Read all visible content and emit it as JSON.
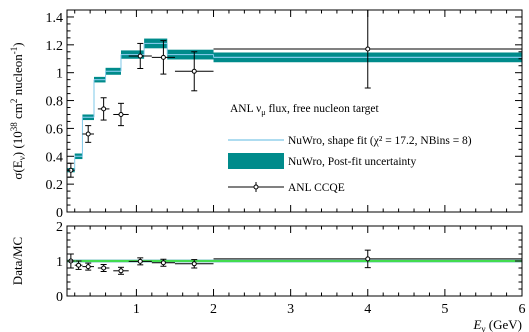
{
  "chart_data": [
    {
      "type": "line",
      "panel": "top",
      "ylabel": "σ(E_ν) (10^38 cm² nucleon⁻¹)",
      "ylabel_parts": {
        "sym": "σ(E",
        "sub": "ν",
        "mid": ") (10",
        "exp1": "38",
        "unit": " cm",
        "exp2": "2",
        "unit2": " nucleon",
        "exp3": "-1",
        "close": ")"
      },
      "xlim": [
        0.1,
        6
      ],
      "ylim": [
        0,
        1.45
      ],
      "yticks": [
        "0",
        "0.2",
        "0.4",
        "0.6",
        "0.8",
        "1",
        "1.2",
        "1.4"
      ],
      "ytick_values": [
        0,
        0.2,
        0.4,
        0.6,
        0.8,
        1.0,
        1.2,
        1.4
      ],
      "legend": {
        "title_parts": {
          "pre": "ANL ν",
          "sub": "μ",
          "post": " flux, free nucleon target"
        },
        "line_label": "NuWro, shape fit (χ² = 17.2, NBins = 8)",
        "band_label": "NuWro, Post-fit uncertainty",
        "data_label": "ANL CCQE"
      },
      "colors": {
        "line": "#7ec8e8",
        "band": "#008b8b",
        "data": "#000000"
      },
      "series": [
        {
          "name": "NuWro, shape fit",
          "bins": [
            [
              0.1,
              0.2,
              0.3
            ],
            [
              0.2,
              0.3,
              0.4
            ],
            [
              0.3,
              0.45,
              0.68
            ],
            [
              0.45,
              0.6,
              0.95
            ],
            [
              0.6,
              0.8,
              1.01
            ],
            [
              0.8,
              1.1,
              1.13
            ],
            [
              1.1,
              1.4,
              1.21
            ],
            [
              1.4,
              2.0,
              1.13
            ],
            [
              2.0,
              6.0,
              1.11
            ]
          ],
          "band_half_width": [
            0.015,
            0.02,
            0.02,
            0.02,
            0.025,
            0.03,
            0.035,
            0.035,
            0.035
          ]
        },
        {
          "name": "ANL CCQE",
          "points": [
            {
              "x": 0.15,
              "y": 0.3,
              "xerr": 0.05,
              "yerr": 0.05
            },
            {
              "x": 0.375,
              "y": 0.56,
              "xerr": 0.075,
              "yerr": 0.06
            },
            {
              "x": 0.575,
              "y": 0.74,
              "xerr": 0.075,
              "yerr": 0.08
            },
            {
              "x": 0.8,
              "y": 0.7,
              "xerr": 0.1,
              "yerr": 0.08
            },
            {
              "x": 1.05,
              "y": 1.12,
              "xerr": 0.15,
              "yerr": 0.09
            },
            {
              "x": 1.35,
              "y": 1.11,
              "xerr": 0.15,
              "yerr": 0.12
            },
            {
              "x": 1.75,
              "y": 1.01,
              "xerr": 0.25,
              "yerr": 0.14
            },
            {
              "x": 4.0,
              "y": 1.17,
              "xerr": 2.0,
              "yerr": 0.28
            }
          ]
        }
      ]
    },
    {
      "type": "line",
      "panel": "bottom",
      "ylabel": "Data/MC",
      "xlabel_parts": {
        "pre": "E",
        "sub": "ν",
        "post": " (GeV)"
      },
      "xlim": [
        0.1,
        6
      ],
      "ylim": [
        0,
        2
      ],
      "yticks": [
        "0",
        "1",
        "2"
      ],
      "ytick_values": [
        0,
        1,
        2
      ],
      "xticks": [
        "1",
        "2",
        "3",
        "4",
        "5",
        "6"
      ],
      "xtick_values": [
        1,
        2,
        3,
        4,
        5,
        6
      ],
      "colors": {
        "line": "#22dd22",
        "band": "#008b8b",
        "data": "#000000"
      },
      "reference": 1,
      "series": [
        {
          "name": "Data/MC",
          "points": [
            {
              "x": 0.15,
              "y": 1.0,
              "xerr": 0.05,
              "yerr": 0.2
            },
            {
              "x": 0.25,
              "y": 0.88,
              "xerr": 0.05,
              "yerr": 0.12
            },
            {
              "x": 0.375,
              "y": 0.84,
              "xerr": 0.075,
              "yerr": 0.1
            },
            {
              "x": 0.575,
              "y": 0.8,
              "xerr": 0.075,
              "yerr": 0.1
            },
            {
              "x": 0.8,
              "y": 0.72,
              "xerr": 0.1,
              "yerr": 0.1
            },
            {
              "x": 1.05,
              "y": 0.99,
              "xerr": 0.15,
              "yerr": 0.1
            },
            {
              "x": 1.35,
              "y": 0.95,
              "xerr": 0.15,
              "yerr": 0.1
            },
            {
              "x": 1.75,
              "y": 0.92,
              "xerr": 0.25,
              "yerr": 0.12
            },
            {
              "x": 4.0,
              "y": 1.06,
              "xerr": 2.0,
              "yerr": 0.25
            }
          ]
        }
      ]
    }
  ]
}
